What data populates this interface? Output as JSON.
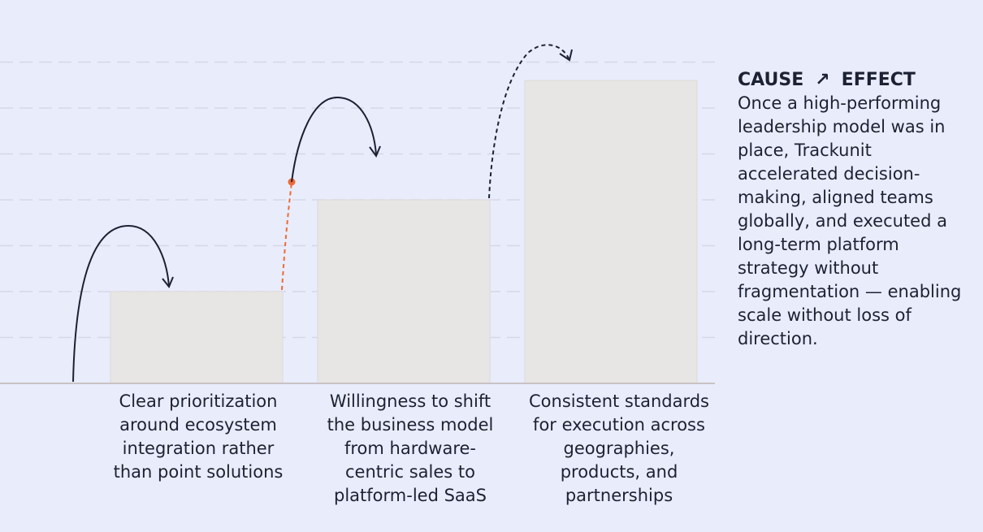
{
  "side_panel": {
    "cause_label": "CAUSE",
    "effect_label": "EFFECT",
    "arrow_icon": "arrow-up-right-icon",
    "body": "Once a high-performing leadership model was in place, Trackunit accelerated decision-making, aligned teams globally, and executed a long-term platform strategy without fragmentation — enabling scale without loss of direction."
  },
  "steps": [
    {
      "label": "Clear prioritization around ecosystem integration rather than point solutions",
      "level": 2
    },
    {
      "label": "Willingness to shift the business model from hardware-centric sales to platform-led SaaS",
      "level": 4
    },
    {
      "label": "Consistent standards for execution across geographies, products, and partnerships",
      "level": 6.6
    }
  ],
  "colors": {
    "background": "#e9ecfb",
    "bar_fill": "#e7e6e4",
    "grid": "#d6d8e6",
    "ink": "#1c2233",
    "accent": "#ee6a35"
  }
}
